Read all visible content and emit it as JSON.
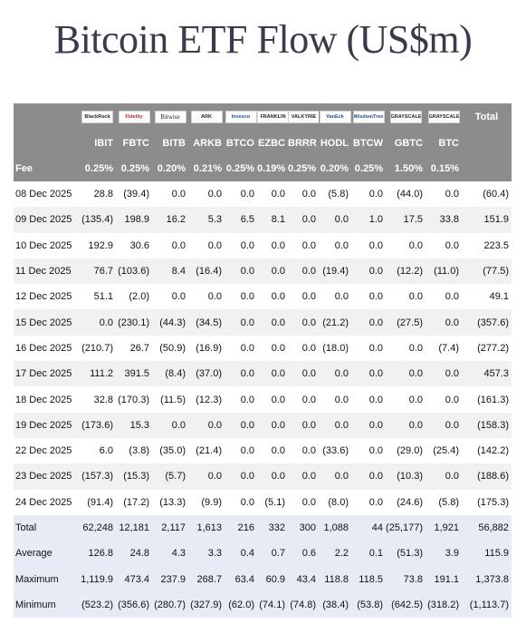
{
  "title": "Bitcoin ETF Flow (US$m)",
  "header": {
    "total_label": "Total",
    "fee_label": "Fee",
    "logos": [
      {
        "name": "blackrock-logo",
        "text": "BlackRock",
        "style": ""
      },
      {
        "name": "fidelity-logo",
        "text": "Fidelity",
        "style": "red"
      },
      {
        "name": "bitwise-logo",
        "text": "Bitwise",
        "style": "serif"
      },
      {
        "name": "ark-logo",
        "text": "ARK",
        "style": ""
      },
      {
        "name": "invesco-logo",
        "text": "Invesco",
        "style": "blue"
      },
      {
        "name": "franklin-logo",
        "text": "FRANKLIN",
        "style": ""
      },
      {
        "name": "valkyrie-logo",
        "text": "VALKYRIE",
        "style": ""
      },
      {
        "name": "vaneck-logo",
        "text": "VanEck",
        "style": "blue"
      },
      {
        "name": "wisdomtree-logo",
        "text": "WisdomTree",
        "style": "blue"
      },
      {
        "name": "grayscale-gbtc-logo",
        "text": "GRAYSCALE",
        "style": ""
      },
      {
        "name": "grayscale-btc-logo",
        "text": "GRAYSCALE",
        "style": ""
      }
    ],
    "tickers": [
      "IBIT",
      "FBTC",
      "BITB",
      "ARKB",
      "BTCO",
      "EZBC",
      "BRRR",
      "HODL",
      "BTCW",
      "GBTC",
      "BTC"
    ],
    "fees": [
      "0.25%",
      "0.25%",
      "0.20%",
      "0.21%",
      "0.25%",
      "0.19%",
      "0.25%",
      "0.20%",
      "0.25%",
      "1.50%",
      "0.15%"
    ]
  },
  "rows": [
    {
      "label": "08 Dec 2025",
      "values": [
        "28.8",
        "(39.4)",
        "0.0",
        "0.0",
        "0.0",
        "0.0",
        "0.0",
        "(5.8)",
        "0.0",
        "(44.0)",
        "0.0",
        "(60.4)"
      ]
    },
    {
      "label": "09 Dec 2025",
      "values": [
        "(135.4)",
        "198.9",
        "16.2",
        "5.3",
        "6.5",
        "8.1",
        "0.0",
        "0.0",
        "1.0",
        "17.5",
        "33.8",
        "151.9"
      ]
    },
    {
      "label": "10 Dec 2025",
      "values": [
        "192.9",
        "30.6",
        "0.0",
        "0.0",
        "0.0",
        "0.0",
        "0.0",
        "0.0",
        "0.0",
        "0.0",
        "0.0",
        "223.5"
      ]
    },
    {
      "label": "11 Dec 2025",
      "values": [
        "76.7",
        "(103.6)",
        "8.4",
        "(16.4)",
        "0.0",
        "0.0",
        "0.0",
        "(19.4)",
        "0.0",
        "(12.2)",
        "(11.0)",
        "(77.5)"
      ]
    },
    {
      "label": "12 Dec 2025",
      "values": [
        "51.1",
        "(2.0)",
        "0.0",
        "0.0",
        "0.0",
        "0.0",
        "0.0",
        "0.0",
        "0.0",
        "0.0",
        "0.0",
        "49.1"
      ]
    },
    {
      "label": "15 Dec 2025",
      "values": [
        "0.0",
        "(230.1)",
        "(44.3)",
        "(34.5)",
        "0.0",
        "0.0",
        "0.0",
        "(21.2)",
        "0.0",
        "(27.5)",
        "0.0",
        "(357.6)"
      ]
    },
    {
      "label": "16 Dec 2025",
      "values": [
        "(210.7)",
        "26.7",
        "(50.9)",
        "(16.9)",
        "0.0",
        "0.0",
        "0.0",
        "(18.0)",
        "0.0",
        "0.0",
        "(7.4)",
        "(277.2)"
      ]
    },
    {
      "label": "17 Dec 2025",
      "values": [
        "111.2",
        "391.5",
        "(8.4)",
        "(37.0)",
        "0.0",
        "0.0",
        "0.0",
        "0.0",
        "0.0",
        "0.0",
        "0.0",
        "457.3"
      ]
    },
    {
      "label": "18 Dec 2025",
      "values": [
        "32.8",
        "(170.3)",
        "(11.5)",
        "(12.3)",
        "0.0",
        "0.0",
        "0.0",
        "0.0",
        "0.0",
        "0.0",
        "0.0",
        "(161.3)"
      ]
    },
    {
      "label": "19 Dec 2025",
      "values": [
        "(173.6)",
        "15.3",
        "0.0",
        "0.0",
        "0.0",
        "0.0",
        "0.0",
        "0.0",
        "0.0",
        "0.0",
        "0.0",
        "(158.3)"
      ]
    },
    {
      "label": "22 Dec 2025",
      "values": [
        "6.0",
        "(3.8)",
        "(35.0)",
        "(21.4)",
        "0.0",
        "0.0",
        "0.0",
        "(33.6)",
        "0.0",
        "(29.0)",
        "(25.4)",
        "(142.2)"
      ]
    },
    {
      "label": "23 Dec 2025",
      "values": [
        "(157.3)",
        "(15.3)",
        "(5.7)",
        "0.0",
        "0.0",
        "0.0",
        "0.0",
        "0.0",
        "0.0",
        "(10.3)",
        "0.0",
        "(188.6)"
      ]
    },
    {
      "label": "24 Dec 2025",
      "values": [
        "(91.4)",
        "(17.2)",
        "(13.3)",
        "(9.9)",
        "0.0",
        "(5.1)",
        "0.0",
        "(8.0)",
        "0.0",
        "(24.6)",
        "(5.8)",
        "(175.3)"
      ]
    }
  ],
  "summary": [
    {
      "label": "Total",
      "values": [
        "62,248",
        "12,181",
        "2,117",
        "1,613",
        "216",
        "332",
        "300",
        "1,088",
        "44",
        "(25,177)",
        "1,921",
        "56,882"
      ]
    },
    {
      "label": "Average",
      "values": [
        "126.8",
        "24.8",
        "4.3",
        "3.3",
        "0.4",
        "0.7",
        "0.6",
        "2.2",
        "0.1",
        "(51.3)",
        "3.9",
        "115.9"
      ]
    },
    {
      "label": "Maximum",
      "values": [
        "1,119.9",
        "473.4",
        "237.9",
        "268.7",
        "63.4",
        "60.9",
        "43.4",
        "118.8",
        "118.5",
        "73.8",
        "191.1",
        "1,373.8"
      ]
    },
    {
      "label": "Minimum",
      "values": [
        "(523.2)",
        "(356.6)",
        "(280.7)",
        "(327.9)",
        "(62.0)",
        "(74.1)",
        "(74.8)",
        "(38.4)",
        "(53.8)",
        "(642.5)",
        "(318.2)",
        "(1,113.7)"
      ]
    }
  ],
  "colors": {
    "header_bg": "#8c8c8c",
    "negative": "#d02020",
    "summary_bg": "#e6ebf6",
    "alt_row": "#f1f1f1"
  }
}
